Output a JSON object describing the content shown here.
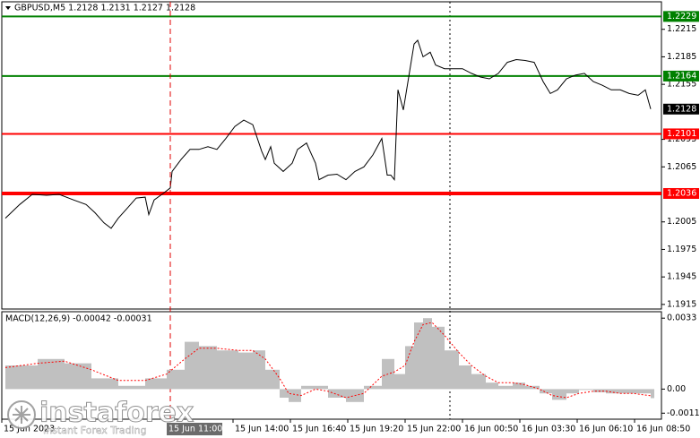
{
  "chart_data": [
    {
      "type": "line",
      "title": "GBPUSD,M5  1.2128 1.2131 1.2127 1.2128",
      "color": "#000000",
      "x": [
        2,
        10,
        17,
        25,
        32,
        40,
        47,
        52,
        57,
        61,
        65,
        70,
        75,
        80,
        82,
        85,
        90,
        94,
        95,
        100,
        105,
        110,
        115,
        120,
        125,
        130,
        135,
        140,
        145,
        147,
        150,
        152,
        157,
        162,
        165,
        170,
        172,
        175,
        177,
        182,
        187,
        192,
        197,
        202,
        207,
        212,
        215,
        217,
        219,
        221,
        224,
        227,
        230,
        232,
        235,
        239,
        242,
        247,
        252,
        257,
        262,
        267,
        272,
        277,
        282,
        287,
        292,
        297,
        302,
        306,
        310,
        315,
        320,
        325,
        330,
        335,
        340,
        345,
        350,
        355,
        359,
        362
      ],
      "values": [
        1.2009,
        1.2024,
        1.2035,
        1.2034,
        1.2035,
        1.2029,
        1.2024,
        1.2015,
        1.2004,
        1.1998,
        1.2009,
        1.202,
        1.2031,
        1.2032,
        1.2013,
        1.2029,
        1.2036,
        1.2042,
        1.206,
        1.2073,
        1.2084,
        1.2084,
        1.2087,
        1.2084,
        1.2096,
        1.2109,
        1.2116,
        1.2111,
        1.2082,
        1.2073,
        1.2087,
        1.2069,
        1.206,
        1.2069,
        1.2084,
        1.2091,
        1.2082,
        1.2069,
        1.2051,
        1.2056,
        1.2057,
        1.2051,
        1.206,
        1.2065,
        1.2078,
        1.2096,
        1.2056,
        1.2056,
        1.2051,
        1.2149,
        1.2127,
        1.2163,
        1.2199,
        1.2203,
        1.2185,
        1.219,
        1.2176,
        1.2172,
        1.2172,
        1.2172,
        1.2167,
        1.2163,
        1.2161,
        1.2167,
        1.2179,
        1.2182,
        1.2181,
        1.2179,
        1.2158,
        1.2145,
        1.2149,
        1.2161,
        1.2165,
        1.2167,
        1.2158,
        1.2154,
        1.2149,
        1.2149,
        1.2145,
        1.2143,
        1.2149,
        1.2128
      ],
      "levels": [
        {
          "value": 1.2229,
          "color": "#008000"
        },
        {
          "value": 1.2164,
          "color": "#008000"
        },
        {
          "value": 1.2101,
          "color": "#ff0000"
        },
        {
          "value": 1.2036,
          "color": "#ff0000"
        }
      ],
      "last": 1.2128,
      "xlim": [
        0,
        368
      ],
      "ylim": [
        1.191,
        1.2245
      ],
      "yticks": [
        1.2215,
        1.2185,
        1.2155,
        1.2095,
        1.2065,
        1.2005,
        1.1975,
        1.1945,
        1.1915
      ],
      "xticks": [
        {
          "value": 0,
          "label": "15 Jun 2023"
        },
        {
          "value": 129,
          "label": "15 Jun 14:00"
        },
        {
          "value": 161,
          "label": "15 Jun 16:40"
        },
        {
          "value": 193,
          "label": "15 Jun 19:20"
        },
        {
          "value": 225,
          "label": "15 Jun 22:00"
        },
        {
          "value": 257,
          "label": "16 Jun 00:50"
        },
        {
          "value": 289,
          "label": "16 Jun 03:30"
        },
        {
          "value": 321,
          "label": "16 Jun 06:10"
        },
        {
          "value": 353,
          "label": "16 Jun 08:50"
        }
      ],
      "cursor": {
        "value": 94,
        "label": "15 Jun 11:00"
      },
      "separators": [
        250
      ]
    },
    {
      "type": "macd",
      "title": "MACD(12,26,9) -0.00042 -0.00031",
      "color": "#c0c0c0",
      "signal_color": "#ff0000",
      "x": [
        2,
        20,
        35,
        50,
        65,
        80,
        92,
        102,
        110,
        120,
        132,
        140,
        147,
        155,
        160,
        167,
        175,
        182,
        192,
        202,
        212,
        219,
        225,
        230,
        235,
        240,
        247,
        255,
        262,
        270,
        277,
        285,
        292,
        300,
        307,
        315,
        322,
        330,
        337,
        345,
        352,
        362
      ],
      "values": [
        0.0011,
        0.0014,
        0.0012,
        0.0005,
        0.00015,
        0.0005,
        0.0009,
        0.0022,
        0.002,
        0.0018,
        0.0017,
        0.0018,
        0.0009,
        -0.0004,
        -0.0006,
        0.00015,
        0.00015,
        -0.0004,
        -0.0006,
        0.00015,
        0.0014,
        0.0007,
        0.002,
        0.0031,
        0.0033,
        0.0029,
        0.0018,
        0.0011,
        0.0007,
        0.0003,
        0.00015,
        0.0003,
        0.00015,
        -0.0002,
        -0.0005,
        -0.0002,
        -4e-05,
        -0.00015,
        -0.0002,
        -0.0002,
        -0.0002,
        -0.00042
      ],
      "signal_values": [
        0.001,
        0.0012,
        0.0013,
        0.0009,
        0.0004,
        0.0004,
        0.0007,
        0.0014,
        0.0019,
        0.0019,
        0.0018,
        0.0018,
        0.0014,
        0.0005,
        -0.0002,
        -0.0003,
        0,
        -0.0001,
        -0.0004,
        -0.0002,
        0.0006,
        0.0008,
        0.0011,
        0.0022,
        0.003,
        0.0031,
        0.0025,
        0.0017,
        0.0011,
        0.0006,
        0.0003,
        0.0003,
        0.0002,
        0,
        -0.0003,
        -0.0004,
        -0.0002,
        -0.0001,
        -0.0001,
        -0.0002,
        -0.0002,
        -0.00031
      ],
      "xlim": [
        0,
        368
      ],
      "ylim": [
        -0.0014,
        0.0036
      ],
      "yticks": [
        0.0033,
        {
          "value": 0,
          "label": "0.00"
        },
        -0.00112
      ]
    }
  ],
  "watermark": {
    "brand": "instaforex",
    "tagline": "Instant Forex Trading"
  }
}
